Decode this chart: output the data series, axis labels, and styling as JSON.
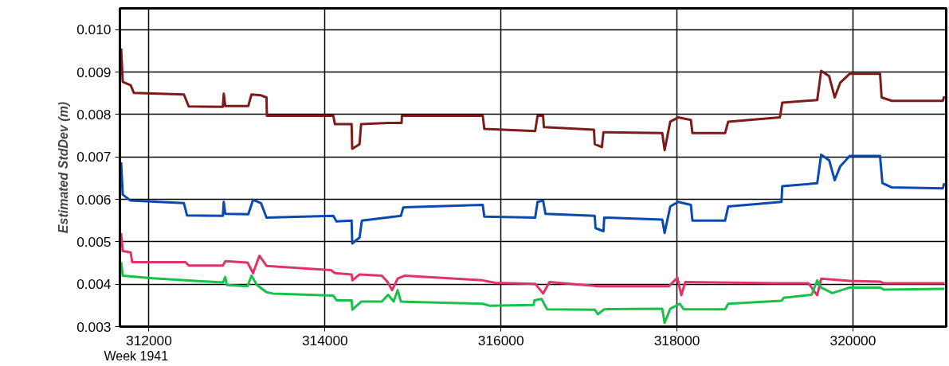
{
  "chart_data": {
    "type": "line",
    "ylabel": "Estimated StdDev (m)",
    "annotations": [
      "Week 1941"
    ],
    "xlim": [
      311670,
      321060
    ],
    "xticks": [
      312000,
      314000,
      316000,
      318000,
      320000
    ],
    "ylim": [
      0.003,
      0.0105
    ],
    "yticks": [
      {
        "value": 0.003,
        "label": "0.003"
      },
      {
        "value": 0.004,
        "label": "0.004"
      },
      {
        "value": 0.005,
        "label": "0.005"
      },
      {
        "value": 0.006,
        "label": "0.006"
      },
      {
        "value": 0.007,
        "label": "0.007"
      },
      {
        "value": 0.008,
        "label": "0.008"
      },
      {
        "value": 0.009,
        "label": "0.009"
      },
      {
        "value": 0.01,
        "label": "0.010"
      }
    ],
    "grid": true,
    "line_style": "solid",
    "marker": "none",
    "series": [
      {
        "color": "#7f1a1a",
        "x": [
          311684,
          311702,
          311792,
          311828,
          312397,
          312452,
          312840,
          312850,
          312867,
          313129,
          313165,
          313273,
          313336,
          313340,
          314095,
          314113,
          314303,
          314310,
          314393,
          314411,
          314718,
          314871,
          314875,
          315793,
          315811,
          316389,
          316416,
          316479,
          316488,
          317057,
          317066,
          317147,
          317165,
          317833,
          317860,
          317924,
          318014,
          318158,
          318176,
          318547,
          318583,
          319170,
          319197,
          319594,
          319639,
          319730,
          319793,
          319856,
          319964,
          320308,
          320326,
          320443,
          321021,
          321039
        ],
        "values": [
          0.00955,
          0.00877,
          0.00869,
          0.00851,
          0.00847,
          0.00819,
          0.00818,
          0.00849,
          0.0082,
          0.0082,
          0.00847,
          0.00845,
          0.0084,
          0.00797,
          0.00797,
          0.00777,
          0.00777,
          0.00719,
          0.0073,
          0.00777,
          0.0078,
          0.0078,
          0.00797,
          0.00797,
          0.00766,
          0.00761,
          0.00797,
          0.00797,
          0.0077,
          0.00764,
          0.0073,
          0.00723,
          0.00758,
          0.00756,
          0.00716,
          0.00783,
          0.00793,
          0.00787,
          0.00756,
          0.00756,
          0.00783,
          0.00793,
          0.00828,
          0.00834,
          0.00903,
          0.0089,
          0.0084,
          0.00875,
          0.00896,
          0.00896,
          0.0084,
          0.00832,
          0.00832,
          0.00843
        ]
      },
      {
        "color": "#0a4ab0",
        "x": [
          311684,
          311702,
          311792,
          312397,
          312433,
          312840,
          312850,
          312867,
          313129,
          313183,
          313273,
          313336,
          314095,
          314131,
          314303,
          314310,
          314393,
          314420,
          314863,
          314890,
          315793,
          315811,
          316389,
          316416,
          316479,
          316506,
          317066,
          317075,
          317165,
          317174,
          317833,
          317860,
          317924,
          318014,
          318158,
          318176,
          318547,
          318583,
          319188,
          319197,
          319594,
          319639,
          319730,
          319793,
          319856,
          319964,
          320308,
          320335,
          320443,
          321021,
          321039
        ],
        "values": [
          0.00687,
          0.00611,
          0.00597,
          0.00591,
          0.00562,
          0.00561,
          0.00594,
          0.00566,
          0.00565,
          0.00599,
          0.00591,
          0.00557,
          0.00561,
          0.00548,
          0.0055,
          0.00496,
          0.0051,
          0.0055,
          0.00561,
          0.00581,
          0.00587,
          0.00559,
          0.00557,
          0.00594,
          0.00597,
          0.00566,
          0.00561,
          0.00532,
          0.00525,
          0.00557,
          0.00552,
          0.00521,
          0.00583,
          0.00594,
          0.00587,
          0.0055,
          0.0055,
          0.00583,
          0.00594,
          0.00631,
          0.00638,
          0.00705,
          0.00692,
          0.00645,
          0.00678,
          0.00702,
          0.00702,
          0.00638,
          0.00628,
          0.00626,
          0.00638
        ]
      },
      {
        "color": "#e0336a",
        "x": [
          311684,
          311702,
          311792,
          311810,
          312415,
          312452,
          312840,
          312867,
          313120,
          313183,
          313255,
          313336,
          314068,
          314113,
          314303,
          314312,
          314393,
          314646,
          314709,
          314763,
          314826,
          314908,
          315793,
          315937,
          316389,
          316479,
          316551,
          317111,
          317906,
          318005,
          318050,
          318095,
          319170,
          319495,
          319594,
          319639,
          319964,
          320308,
          320353,
          321039
        ],
        "values": [
          0.0052,
          0.00478,
          0.00475,
          0.00452,
          0.00452,
          0.00444,
          0.00444,
          0.00454,
          0.00451,
          0.00426,
          0.00467,
          0.00443,
          0.00433,
          0.00426,
          0.00423,
          0.00409,
          0.00423,
          0.0042,
          0.00406,
          0.00386,
          0.00413,
          0.0042,
          0.00409,
          0.00403,
          0.00401,
          0.00378,
          0.00405,
          0.00395,
          0.00395,
          0.00415,
          0.00374,
          0.00405,
          0.00402,
          0.00402,
          0.00374,
          0.00413,
          0.00408,
          0.00406,
          0.00402,
          0.00402
        ]
      },
      {
        "color": "#19c04a",
        "x": [
          311684,
          311702,
          312045,
          312415,
          312840,
          312867,
          312885,
          313120,
          313165,
          313228,
          313336,
          313409,
          314095,
          314131,
          314303,
          314312,
          314411,
          314646,
          314718,
          314781,
          314826,
          314863,
          315793,
          315874,
          316371,
          316380,
          316461,
          316524,
          317066,
          317102,
          317174,
          317833,
          317860,
          317924,
          318032,
          318077,
          318547,
          318583,
          319188,
          319215,
          319531,
          319594,
          319639,
          319766,
          319964,
          320308,
          320353,
          321039
        ],
        "values": [
          0.00452,
          0.0042,
          0.00414,
          0.00409,
          0.00404,
          0.00417,
          0.00398,
          0.00395,
          0.0042,
          0.00398,
          0.00381,
          0.00378,
          0.00373,
          0.00362,
          0.00362,
          0.0034,
          0.00359,
          0.00359,
          0.00375,
          0.00359,
          0.00386,
          0.00359,
          0.00354,
          0.00349,
          0.00351,
          0.00362,
          0.00365,
          0.00341,
          0.0034,
          0.00329,
          0.00341,
          0.00342,
          0.00309,
          0.00342,
          0.00354,
          0.00341,
          0.00341,
          0.00354,
          0.00361,
          0.00368,
          0.00375,
          0.00409,
          0.00392,
          0.00379,
          0.00392,
          0.00392,
          0.00387,
          0.00389
        ]
      }
    ]
  }
}
